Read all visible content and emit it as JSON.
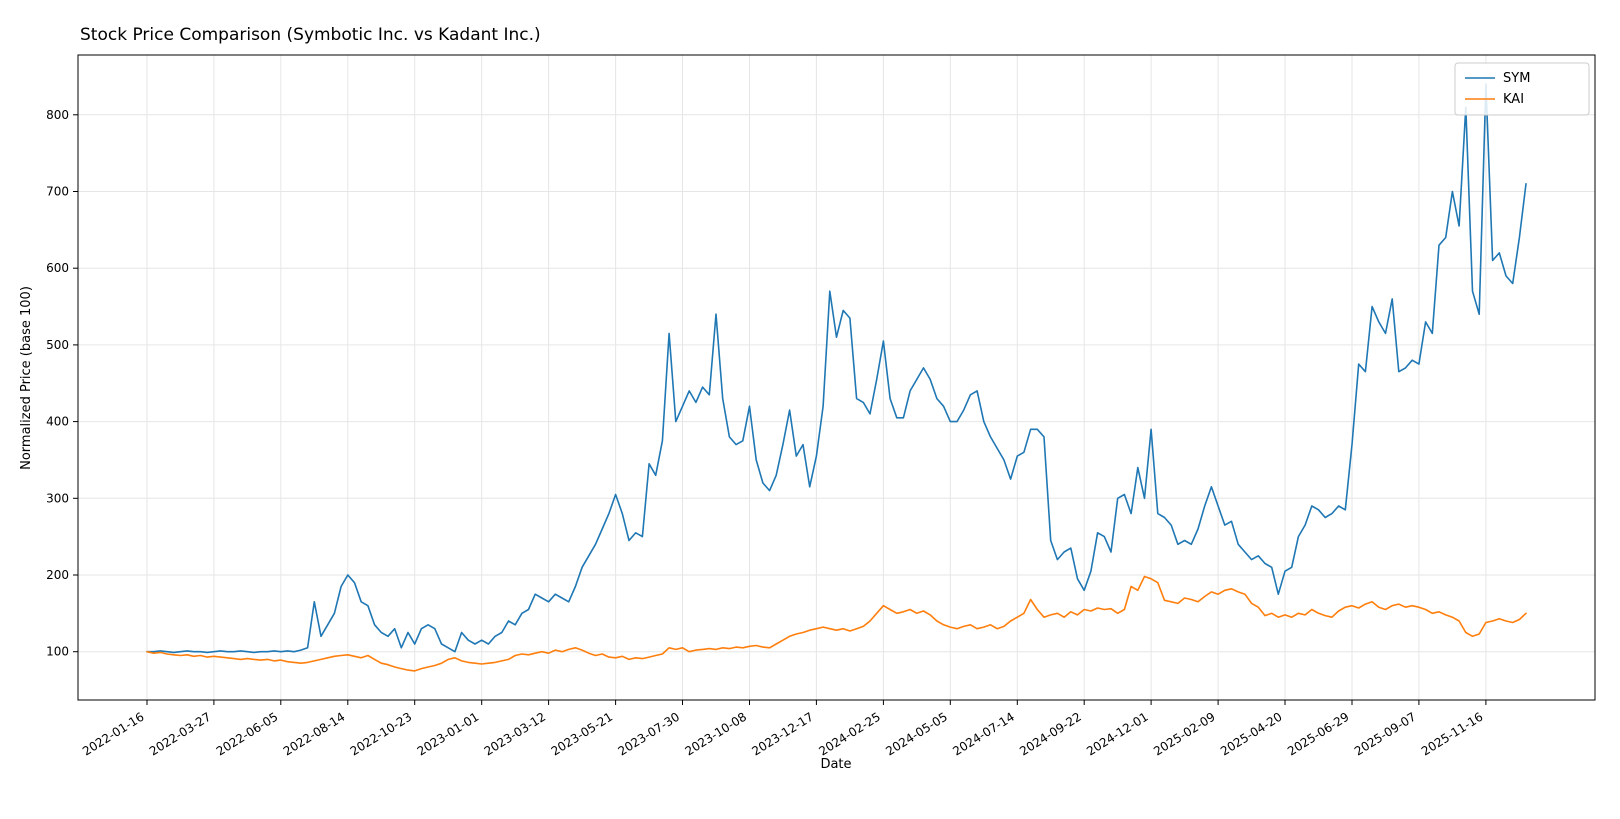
{
  "chart_data": {
    "type": "line",
    "title": "Stock Price Comparison (Symbotic Inc. vs Kadant Inc.)",
    "xlabel": "Date",
    "ylabel": "Normalized Price (base 100)",
    "grid": true,
    "legend_position": "top-right",
    "ylim": [
      37,
      878
    ],
    "y_ticks": [
      100,
      200,
      300,
      400,
      500,
      600,
      700,
      800
    ],
    "x_description": "weekly data points starting 2022-01-16, one point per 7 days",
    "x_tick_indices": [
      0,
      10,
      20,
      30,
      40,
      50,
      60,
      70,
      80,
      90,
      100,
      110,
      120,
      130,
      140,
      150,
      160,
      170,
      180,
      190,
      200
    ],
    "x_tick_labels": [
      "2022-01-16",
      "2022-03-27",
      "2022-06-05",
      "2022-08-14",
      "2022-10-23",
      "2023-01-01",
      "2023-03-12",
      "2023-05-21",
      "2023-07-30",
      "2023-10-08",
      "2023-12-17",
      "2024-02-25",
      "2024-05-05",
      "2024-07-14",
      "2024-09-22",
      "2024-12-01",
      "2025-02-09",
      "2025-04-20",
      "2025-06-29",
      "2025-09-07",
      "2025-11-16"
    ],
    "series": [
      {
        "name": "SYM",
        "color": "#1f77b4",
        "values": [
          100,
          100,
          101,
          100,
          99,
          100,
          101,
          100,
          100,
          99,
          100,
          101,
          100,
          100,
          101,
          100,
          99,
          100,
          100,
          101,
          100,
          101,
          100,
          102,
          105,
          165,
          120,
          135,
          150,
          185,
          200,
          190,
          165,
          160,
          135,
          125,
          120,
          130,
          105,
          125,
          110,
          130,
          135,
          130,
          110,
          105,
          100,
          125,
          115,
          110,
          115,
          110,
          120,
          125,
          140,
          135,
          150,
          155,
          175,
          170,
          165,
          175,
          170,
          165,
          185,
          210,
          225,
          240,
          260,
          280,
          305,
          280,
          245,
          255,
          250,
          345,
          330,
          375,
          515,
          400,
          420,
          440,
          425,
          445,
          435,
          540,
          430,
          380,
          370,
          375,
          420,
          350,
          320,
          310,
          330,
          370,
          415,
          355,
          370,
          315,
          355,
          420,
          570,
          510,
          545,
          535,
          430,
          425,
          410,
          455,
          505,
          430,
          405,
          405,
          440,
          455,
          470,
          455,
          430,
          420,
          400,
          400,
          415,
          435,
          440,
          400,
          380,
          365,
          350,
          325,
          355,
          360,
          390,
          390,
          380,
          245,
          220,
          230,
          235,
          195,
          180,
          205,
          255,
          250,
          230,
          300,
          305,
          280,
          340,
          300,
          390,
          280,
          275,
          265,
          240,
          245,
          240,
          260,
          290,
          315,
          290,
          265,
          270,
          240,
          230,
          220,
          225,
          215,
          210,
          175,
          205,
          210,
          250,
          265,
          290,
          285,
          275,
          280,
          290,
          285,
          370,
          475,
          465,
          550,
          530,
          515,
          560,
          465,
          470,
          480,
          475,
          530,
          515,
          630,
          640,
          700,
          655,
          810,
          570,
          540,
          840,
          610,
          620,
          590,
          580,
          640,
          710
        ]
      },
      {
        "name": "KAI",
        "color": "#ff7f0e",
        "values": [
          100,
          98,
          99,
          97,
          96,
          95,
          96,
          94,
          95,
          93,
          94,
          93,
          92,
          91,
          90,
          91,
          90,
          89,
          90,
          88,
          89,
          87,
          86,
          85,
          86,
          88,
          90,
          92,
          94,
          95,
          96,
          94,
          92,
          95,
          90,
          85,
          83,
          80,
          78,
          76,
          75,
          78,
          80,
          82,
          85,
          90,
          92,
          88,
          86,
          85,
          84,
          85,
          86,
          88,
          90,
          95,
          97,
          96,
          98,
          100,
          98,
          102,
          100,
          103,
          105,
          102,
          98,
          95,
          97,
          93,
          92,
          94,
          90,
          92,
          91,
          93,
          95,
          97,
          105,
          103,
          105,
          100,
          102,
          103,
          104,
          103,
          105,
          104,
          106,
          105,
          107,
          108,
          106,
          105,
          110,
          115,
          120,
          123,
          125,
          128,
          130,
          132,
          130,
          128,
          130,
          127,
          130,
          133,
          140,
          150,
          160,
          155,
          150,
          152,
          155,
          150,
          153,
          148,
          140,
          135,
          132,
          130,
          133,
          135,
          130,
          132,
          135,
          130,
          133,
          140,
          145,
          150,
          168,
          155,
          145,
          148,
          150,
          145,
          152,
          148,
          155,
          153,
          157,
          155,
          156,
          150,
          155,
          185,
          180,
          198,
          195,
          190,
          167,
          165,
          163,
          170,
          168,
          165,
          172,
          178,
          175,
          180,
          182,
          178,
          175,
          163,
          158,
          147,
          150,
          145,
          148,
          145,
          150,
          148,
          155,
          150,
          147,
          145,
          153,
          158,
          160,
          157,
          162,
          165,
          158,
          155,
          160,
          162,
          158,
          160,
          158,
          155,
          150,
          152,
          148,
          145,
          140,
          125,
          120,
          123,
          138,
          140,
          143,
          140,
          138,
          142,
          150
        ]
      }
    ]
  }
}
